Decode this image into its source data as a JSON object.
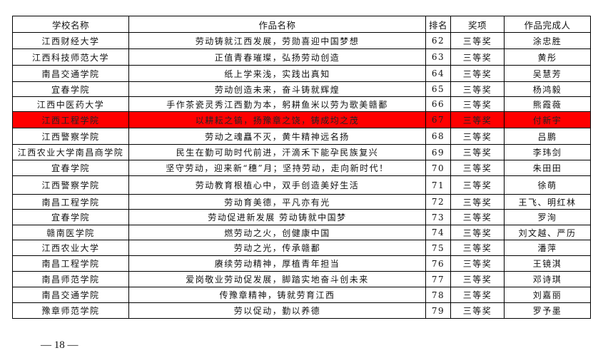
{
  "headers": [
    "学校名称",
    "作品名称",
    "排名",
    "奖项",
    "作品完成人"
  ],
  "highlight_color": "#ff0000",
  "highlighted_rank": "67",
  "rows": [
    [
      "江西财经大学",
      "劳动铸就江西发展，劳勋喜迎中国梦想",
      "62",
      "三等奖",
      "涂忠胜"
    ],
    [
      "江西科技师范大学",
      "正值青春璀璨，弘扬劳动创造",
      "63",
      "三等奖",
      "黄彤"
    ],
    [
      "南昌交通学院",
      "纸上学来浅，实践出真知",
      "64",
      "三等奖",
      "吴慧芳"
    ],
    [
      "宜春学院",
      "劳动创造未来，奋斗铸就辉煌",
      "65",
      "三等奖",
      "杨鸿毅"
    ],
    [
      "江西中医药大学",
      "手作茶瓷灵秀江西勤为本，躬耕鱼米以劳为歌美赣鄱",
      "66",
      "三等奖",
      "熊霞薇"
    ],
    [
      "江西工程学院",
      "以耕耘之镐，扬豫章之饶，铸成均之茂",
      "67",
      "三等奖",
      "付新宇"
    ],
    [
      "江西警察学院",
      "劳动之魂矗不灭，黄牛精神远名扬",
      "68",
      "三等奖",
      "吕鹏"
    ],
    [
      "江西农业大学南昌商学院",
      "民生在勤可助时代前进，汗滴禾下能孕民族复兴",
      "69",
      "三等奖",
      "李玮剑"
    ],
    [
      "宜春学院",
      "坚守劳动，迎来新“穗”月；坚持劳动，走向新时代！",
      "70",
      "三等奖",
      "朱田田"
    ],
    [
      "江西警察学院",
      "劳动教育根植心中，双手创造美好生活",
      "71",
      "三等奖",
      "徐萌"
    ],
    [
      "南昌工程学院",
      "劳动育美德，平凡亦有光",
      "72",
      "三等奖",
      "王飞、明红林"
    ],
    [
      "宜春学院",
      "劳动促进新发展 劳动铸就中国梦",
      "73",
      "三等奖",
      "罗洵"
    ],
    [
      "赣南医学院",
      "燃劳动之火，创健康中国",
      "74",
      "三等奖",
      "刘文越、严历"
    ],
    [
      "江西农业大学",
      "劳动之光，传承赣鄱",
      "75",
      "三等奖",
      "潘萍"
    ],
    [
      "南昌工程学院",
      "赓续劳动精神，厚植青年担当",
      "76",
      "三等奖",
      "王镜淇"
    ],
    [
      "南昌师范学院",
      "爱岗敬业劳动促发展，脚踏实地奋斗创未来",
      "77",
      "三等奖",
      "邓诗琪"
    ],
    [
      "南昌交通学院",
      "传豫章精神，铸就劳育江西",
      "78",
      "三等奖",
      "刘嘉丽"
    ],
    [
      "豫章师范学院",
      "劳以促动，勤以养德",
      "79",
      "三等奖",
      "罗予墨"
    ]
  ],
  "page_number": "— 18 —"
}
